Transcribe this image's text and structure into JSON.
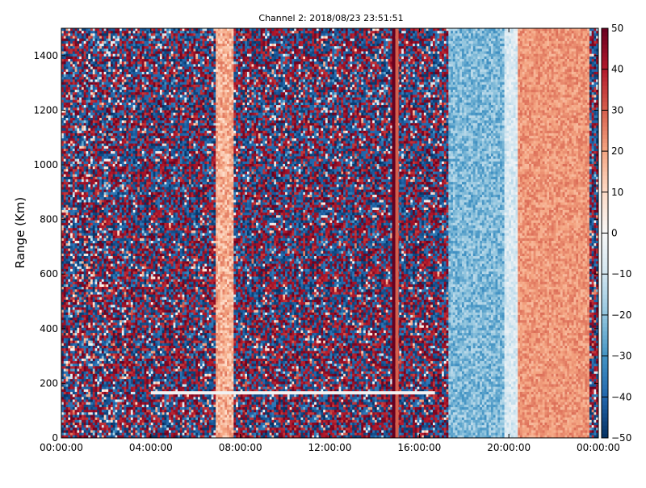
{
  "chart_data": {
    "type": "heatmap",
    "title": "Channel 2: 2018/08/23 23:51:51",
    "ylabel": "Range (Km)",
    "xlabel": "",
    "x_range": [
      "00:00:00",
      "24:00:00"
    ],
    "ylim": [
      0,
      1500
    ],
    "clim": [
      -50,
      50
    ],
    "colormap": "RdBu_r",
    "x_ticks": [
      "00:00:00",
      "04:00:00",
      "08:00:00",
      "12:00:00",
      "16:00:00",
      "20:00:00",
      "00:00:00"
    ],
    "y_ticks": [
      "0",
      "200",
      "400",
      "600",
      "800",
      "1000",
      "1200",
      "1400"
    ],
    "colorbar_ticks": [
      "50",
      "40",
      "30",
      "20",
      "10",
      "0",
      "−10",
      "−20",
      "−30",
      "−40",
      "−50"
    ],
    "grid": false,
    "colors": {
      "low": "#053061",
      "mid": "#f7f7f7",
      "high": "#67001f"
    },
    "bands_hours_vs_value": [
      {
        "from_h": 0.0,
        "to_h": 2.9,
        "value": 0,
        "noise": 60
      },
      {
        "from_h": 2.9,
        "to_h": 6.9,
        "value": 0,
        "noise": 100
      },
      {
        "from_h": 6.9,
        "to_h": 7.7,
        "value": 18,
        "noise": 18
      },
      {
        "from_h": 7.7,
        "to_h": 17.3,
        "value": 0,
        "noise": 100
      },
      {
        "from_h": 17.3,
        "to_h": 19.8,
        "value": -22,
        "noise": 18
      },
      {
        "from_h": 19.8,
        "to_h": 20.4,
        "value": -8,
        "noise": 12
      },
      {
        "from_h": 20.4,
        "to_h": 23.6,
        "value": 22,
        "noise": 12
      },
      {
        "from_h": 23.6,
        "to_h": 24.0,
        "value": 0,
        "noise": 80
      }
    ],
    "lines_hours": [
      {
        "at_h": 15.0,
        "value": 30
      },
      {
        "at_h": 14.85,
        "value": 55
      }
    ],
    "range_line_km": 165,
    "range_line_span_h": [
      4.0,
      16.7
    ]
  }
}
